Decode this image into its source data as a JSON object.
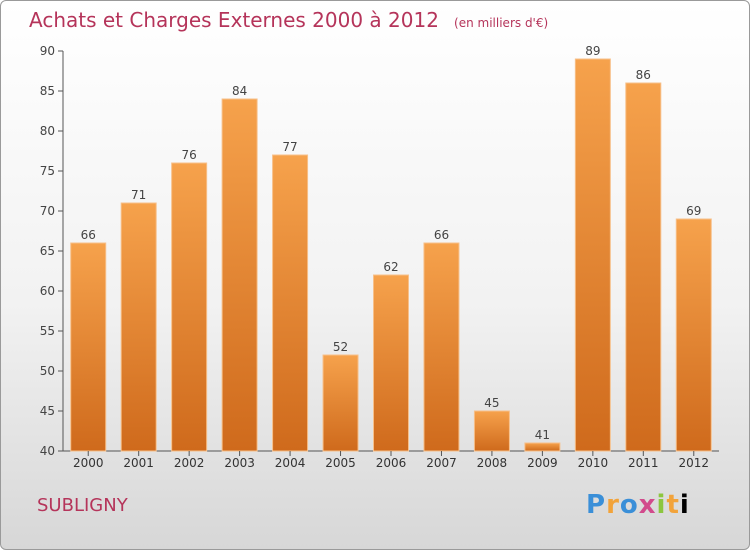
{
  "chart_data": {
    "type": "bar",
    "title": "Achats et Charges Externes 2000 à 2012",
    "subtitle": "(en milliers d'€)",
    "categories": [
      "2000",
      "2001",
      "2002",
      "2003",
      "2004",
      "2005",
      "2006",
      "2007",
      "2008",
      "2009",
      "2010",
      "2011",
      "2012"
    ],
    "values": [
      66,
      71,
      76,
      84,
      77,
      52,
      62,
      66,
      45,
      41,
      89,
      86,
      69
    ],
    "ylim": [
      40,
      90
    ],
    "yticks": [
      40,
      45,
      50,
      55,
      60,
      65,
      70,
      75,
      80,
      85,
      90
    ],
    "grid": false,
    "bar_color": "#f0923a",
    "bar_color_dark": "#d06a1a"
  },
  "footer": {
    "town": "SUBLIGNY",
    "logo_letters": [
      "P",
      "r",
      "o",
      "x",
      "i",
      "t",
      "i"
    ]
  }
}
